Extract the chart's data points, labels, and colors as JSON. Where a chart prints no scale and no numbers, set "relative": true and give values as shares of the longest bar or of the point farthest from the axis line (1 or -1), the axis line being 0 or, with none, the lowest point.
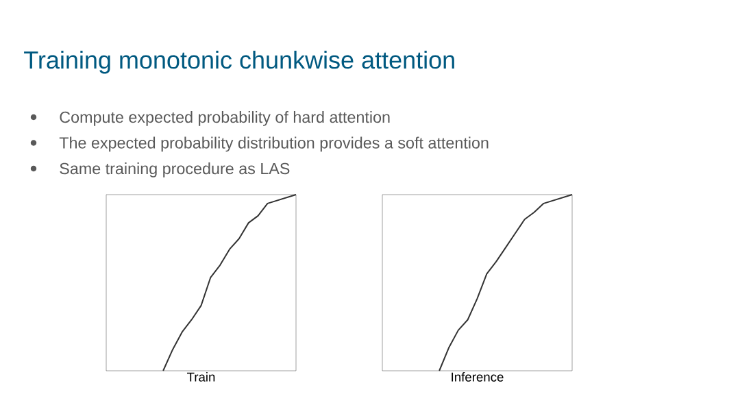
{
  "chart_data": [
    {
      "type": "line",
      "title": "Training monotonic chunkwise attention",
      "annotations": [
        "Compute expected probability of hard attention",
        "The expected probability distribution provides a soft attention",
        "Same training procedure as LAS"
      ],
      "xlabel": "Train",
      "relative": true,
      "color": "#333333",
      "categories": [
        null,
        null,
        null,
        null,
        null,
        null,
        null,
        null,
        null,
        null,
        null,
        null,
        null,
        null,
        null,
        null,
        null,
        null,
        null,
        null,
        null
      ],
      "values": [
        null,
        null,
        null,
        null,
        null,
        null,
        0,
        0.12,
        0.22,
        0.29,
        0.37,
        0.53,
        0.6,
        0.69,
        0.75,
        0.84,
        0.88,
        0.95,
        null,
        null,
        1
      ]
    },
    {
      "type": "line",
      "xlabel": "Inference",
      "relative": true,
      "color": "#333333",
      "categories": [
        null,
        null,
        null,
        null,
        null,
        null,
        null,
        null,
        null,
        null,
        null,
        null,
        null,
        null,
        null,
        null,
        null,
        null,
        null,
        null,
        null
      ],
      "values": [
        null,
        null,
        null,
        null,
        null,
        null,
        0,
        0.13,
        0.23,
        0.29,
        0.41,
        0.55,
        0.62,
        0.7,
        0.78,
        0.86,
        0.9,
        0.95,
        null,
        null,
        1
      ]
    }
  ]
}
